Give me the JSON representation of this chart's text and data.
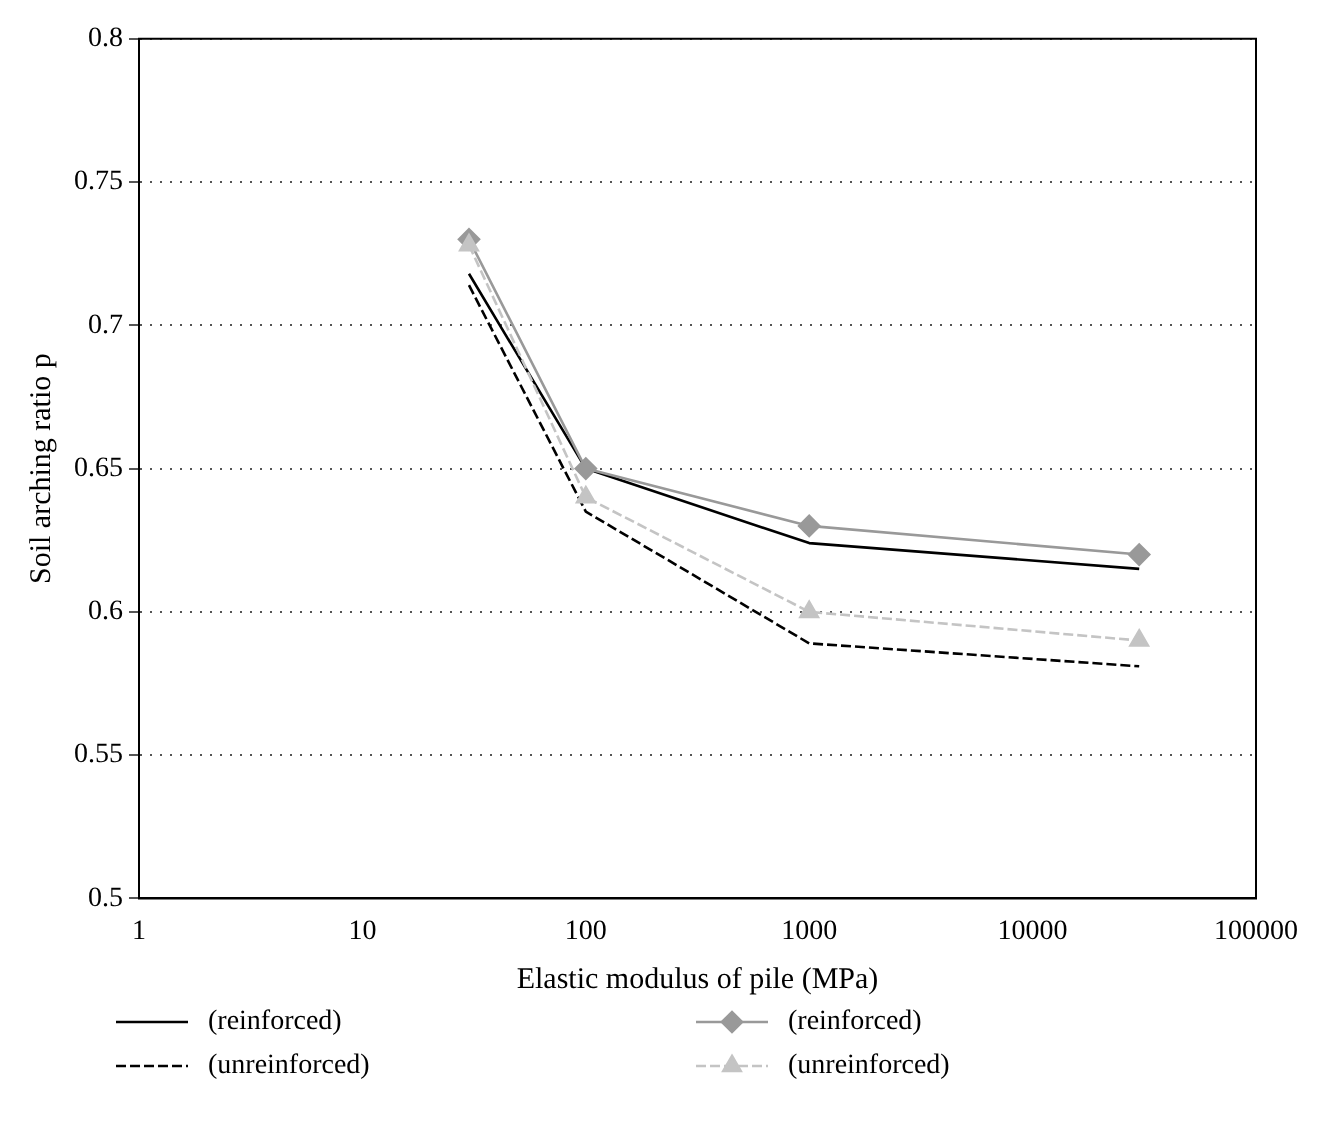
{
  "chart_data": {
    "type": "line",
    "xlabel": "Elastic modulus of pile (MPa)",
    "ylabel": "Soil arching ratio p",
    "log": "x",
    "xlim": [
      1,
      100000
    ],
    "xticks": [
      1,
      10,
      100,
      1000,
      10000,
      100000
    ],
    "ylim": [
      0.5,
      0.8
    ],
    "yticks": [
      0.5,
      0.55,
      0.6,
      0.65,
      0.7,
      0.75,
      0.8
    ],
    "grid": "y",
    "legend": "bottom",
    "x": [
      30,
      100,
      1000,
      30000
    ],
    "series": [
      {
        "name": "(reinforced)",
        "color": "#000000",
        "values": [
          0.718,
          0.65,
          0.624,
          0.615
        ],
        "marker": "none",
        "line_style": "solid"
      },
      {
        "name": "(unreinforced)",
        "color": "#000000",
        "values": [
          0.714,
          0.635,
          0.589,
          0.581
        ],
        "marker": "none",
        "line_style": "dashed"
      },
      {
        "name": "(reinforced)",
        "color": "#999999",
        "values": [
          0.73,
          0.65,
          0.63,
          0.62
        ],
        "marker": "diamond",
        "line_style": "solid"
      },
      {
        "name": "(unreinforced)",
        "color": "#c4c4c4",
        "values": [
          0.728,
          0.64,
          0.6,
          0.59
        ],
        "marker": "triangle",
        "line_style": "dashed"
      }
    ]
  }
}
